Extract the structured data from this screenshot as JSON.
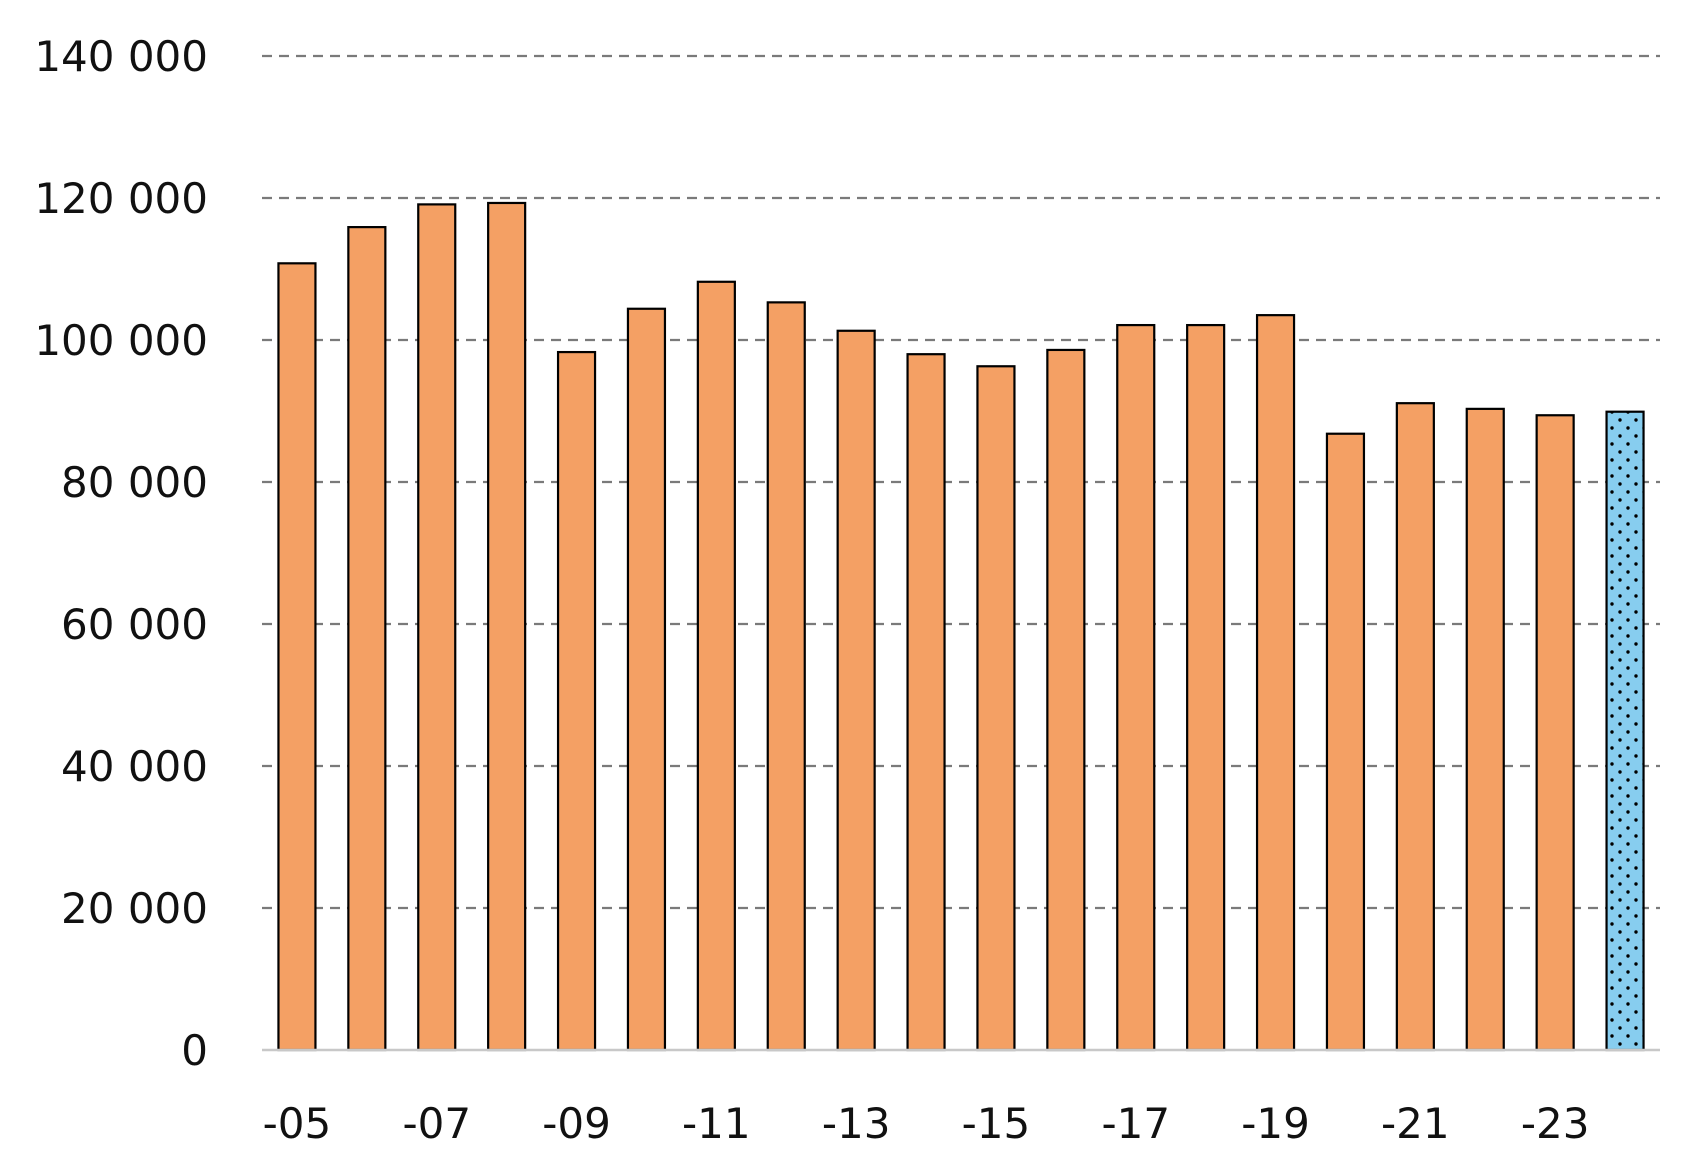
{
  "chart_data": {
    "type": "bar",
    "title": "",
    "xlabel": "",
    "ylabel": "",
    "ylim": [
      0,
      140000
    ],
    "y_ticks": [
      0,
      20000,
      40000,
      60000,
      80000,
      100000,
      120000,
      140000
    ],
    "y_tick_labels": [
      "0",
      "20 000",
      "40 000",
      "60 000",
      "80 000",
      "100 000",
      "120 000",
      "140 000"
    ],
    "categories": [
      "-05",
      "-06",
      "-07",
      "-08",
      "-09",
      "-10",
      "-11",
      "-12",
      "-13",
      "-14",
      "-15",
      "-16",
      "-17",
      "-18",
      "-19",
      "-20",
      "-21",
      "-22",
      "-23",
      "-24"
    ],
    "x_tick_labels": [
      "-05",
      "",
      "-07",
      "",
      "-09",
      "",
      "-11",
      "",
      "-13",
      "",
      "-15",
      "",
      "-17",
      "",
      "-19",
      "",
      "-21",
      "",
      "-23",
      ""
    ],
    "values": [
      110800,
      115900,
      119100,
      119300,
      98300,
      104400,
      108200,
      105300,
      101300,
      98000,
      96300,
      98600,
      102100,
      102100,
      103500,
      86800,
      91100,
      90300,
      89400,
      89900
    ],
    "grid": true,
    "legend": "none",
    "bar_color": "#F4A064",
    "highlight_color": "#87CDEF",
    "highlight_pattern": "dotted",
    "highlight_index": 19
  }
}
